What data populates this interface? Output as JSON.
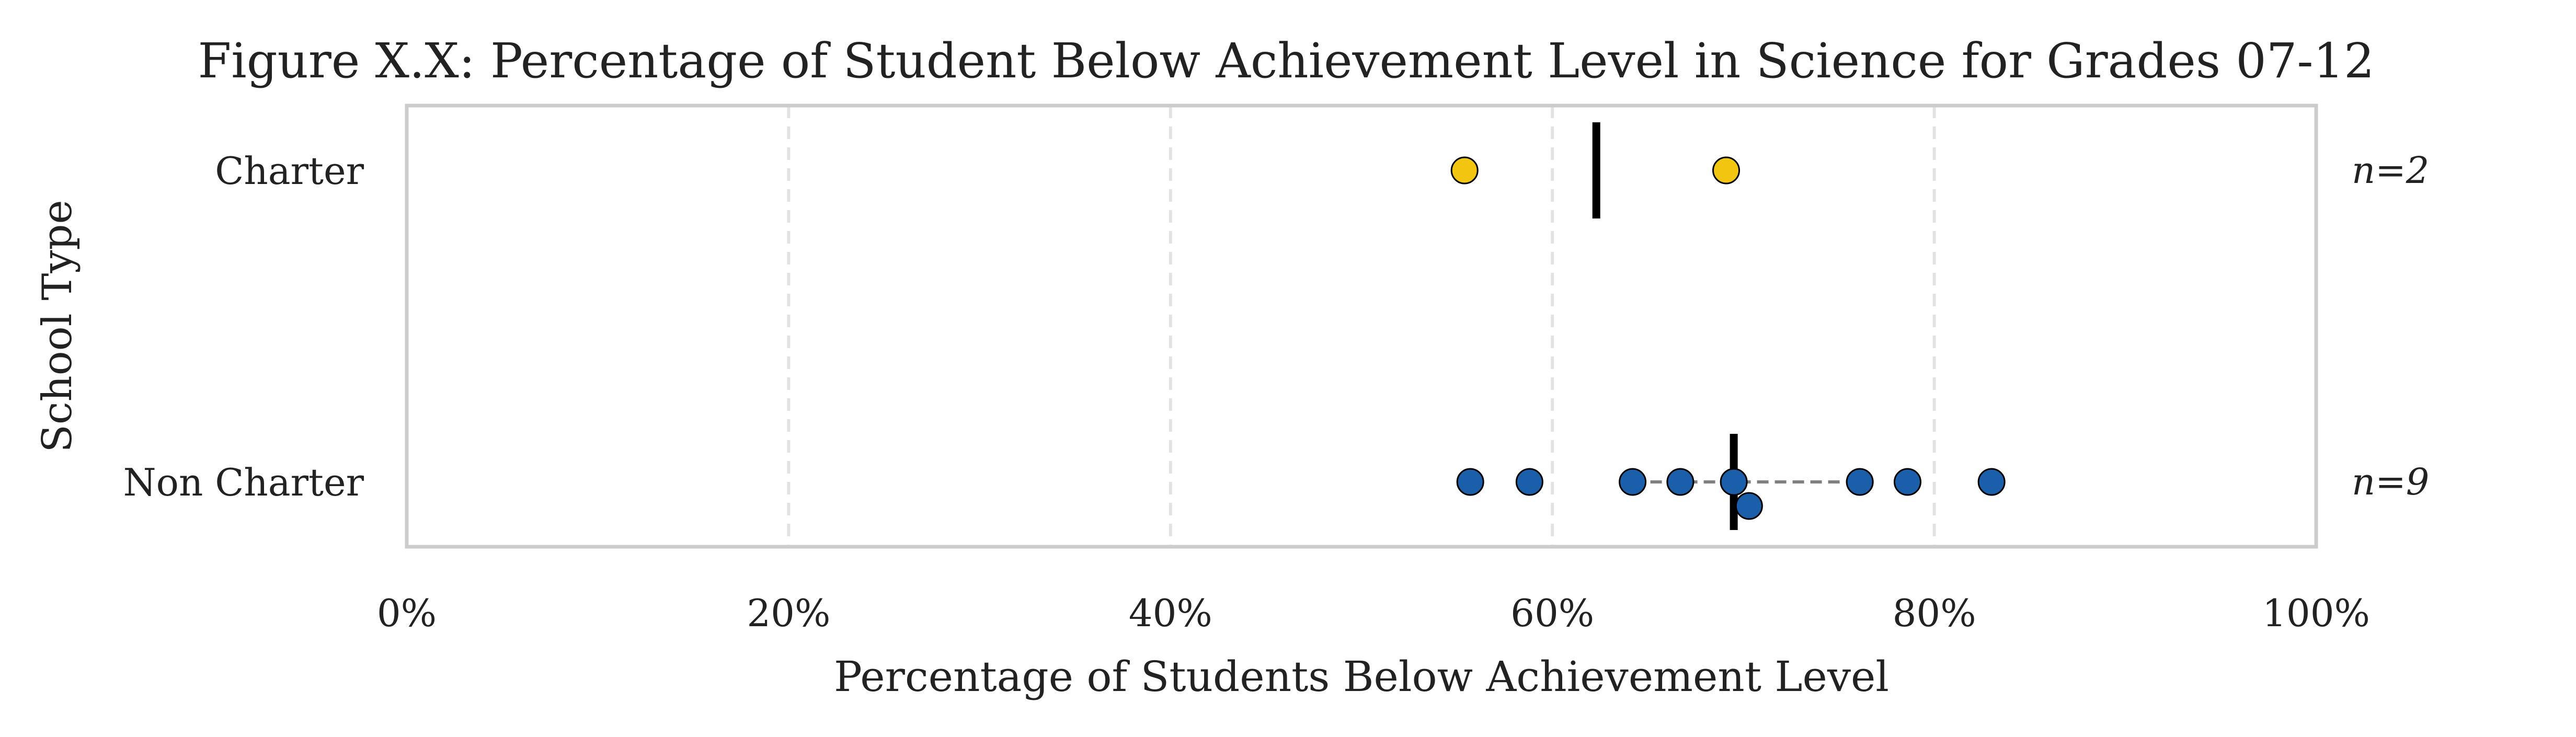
{
  "chart_data": {
    "type": "scatter",
    "title": "Figure X.X: Percentage of Student Below Achievement Level in Science for Grades 07-12",
    "xlabel": "Percentage of Students Below Achievement Level",
    "ylabel": "School Type",
    "xlim": [
      0,
      100
    ],
    "xticks": [
      0,
      20,
      40,
      60,
      80,
      100
    ],
    "xtick_labels": [
      "0%",
      "20%",
      "40%",
      "60%",
      "80%",
      "100%"
    ],
    "grid": "vertical dashed",
    "categories": [
      "Charter",
      "Non Charter"
    ],
    "series": [
      {
        "name": "Charter",
        "color": "#F2C511",
        "values": [
          55.4,
          69.1
        ],
        "median": 62.3,
        "n_label": "n=2"
      },
      {
        "name": "Non Charter",
        "color": "#1B5FAA",
        "values": [
          55.7,
          58.8,
          64.2,
          66.7,
          69.5,
          70.3,
          76.1,
          78.6,
          83.0
        ],
        "median": 69.5,
        "iqr": [
          64.2,
          76.1
        ],
        "n_label": "n=9"
      }
    ]
  }
}
